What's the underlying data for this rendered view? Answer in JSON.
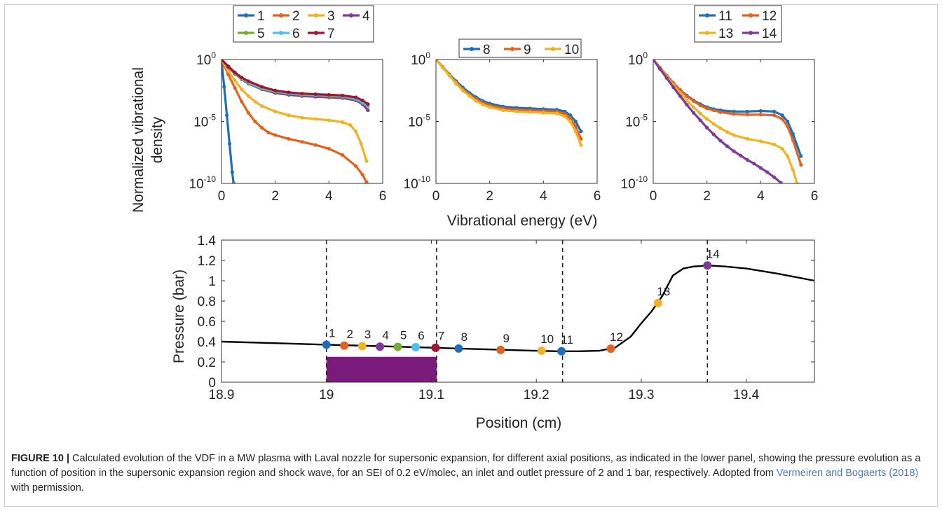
{
  "caption": {
    "label": "FIGURE 10 |",
    "text_before": " Calculated evolution of the VDF in a MW plasma with Laval nozzle for supersonic expansion, for different axial positions, as indicated in the lower panel, showing the pressure evolution as a function of position in the supersonic expansion region and shock wave, for an SEI of 0.2 eV/molec, an inlet and outlet pressure of 2 and 1 bar, respectively. Adopted from ",
    "reference": "Vermeiren and Bogaerts (2018)",
    "text_after": " with permission."
  },
  "colors": {
    "1": "#1f6fb8",
    "2": "#e0621e",
    "3": "#f0b323",
    "4": "#7d3a96",
    "5": "#77ac30",
    "6": "#4fbeee",
    "7": "#a2142f",
    "8": "#1f6fb8",
    "9": "#e0621e",
    "10": "#f0b323",
    "11": "#1f6fb8",
    "12": "#e0621e",
    "13": "#f0b323",
    "14": "#7d3a96",
    "curve": "#000000",
    "bar": "#7a1a7a"
  },
  "chart_data": [
    {
      "type": "line",
      "panel": "top-left",
      "xlabel": "",
      "ylabel": "Normalized vibrational density",
      "yscale": "log",
      "xlim": [
        0,
        6
      ],
      "ylim": [
        1e-10,
        1
      ],
      "xticks": [
        "0",
        "2",
        "4",
        "6"
      ],
      "yticks": [
        {
          "base": "10",
          "exp": "0",
          "value": 1
        },
        {
          "base": "10",
          "exp": "-5",
          "value": 1e-05
        },
        {
          "base": "10",
          "exp": "-10",
          "value": 1e-10
        }
      ],
      "legend": {
        "placement": "top",
        "entries": [
          "1",
          "2",
          "3",
          "4",
          "5",
          "6",
          "7"
        ]
      },
      "series": [
        {
          "name": "1",
          "x": [
            0,
            0.1,
            0.2,
            0.3,
            0.4,
            0.45
          ],
          "log10y": [
            0,
            -2.2,
            -4.5,
            -6.8,
            -9.1,
            -10
          ]
        },
        {
          "name": "2",
          "x": [
            0,
            0.25,
            0.5,
            0.75,
            1.0,
            1.25,
            1.5,
            1.75,
            2.0,
            2.5,
            3.0,
            3.5,
            4.0,
            4.5,
            5.0,
            5.25,
            5.4
          ],
          "log10y": [
            0,
            -1.2,
            -2.3,
            -3.4,
            -4.3,
            -5.0,
            -5.5,
            -5.9,
            -6.1,
            -6.4,
            -6.65,
            -6.9,
            -7.2,
            -7.7,
            -8.6,
            -9.3,
            -9.9
          ]
        },
        {
          "name": "3",
          "x": [
            0,
            0.25,
            0.5,
            0.75,
            1.0,
            1.25,
            1.5,
            2.0,
            2.5,
            3.0,
            3.5,
            4.0,
            4.5,
            4.8,
            5.0,
            5.2,
            5.4
          ],
          "log10y": [
            0,
            -0.9,
            -1.7,
            -2.4,
            -2.95,
            -3.4,
            -3.75,
            -4.2,
            -4.5,
            -4.7,
            -4.8,
            -4.9,
            -5.05,
            -5.3,
            -5.8,
            -6.8,
            -8.2
          ]
        },
        {
          "name": "4",
          "x": [
            0,
            0.25,
            0.5,
            0.75,
            1.0,
            1.5,
            2.0,
            2.5,
            3.0,
            3.5,
            4.0,
            4.5,
            5.0,
            5.25,
            5.45
          ],
          "log10y": [
            0,
            -0.6,
            -1.15,
            -1.6,
            -1.95,
            -2.4,
            -2.7,
            -2.85,
            -2.95,
            -3.0,
            -3.05,
            -3.1,
            -3.3,
            -3.6,
            -4.1
          ]
        },
        {
          "name": "5",
          "x": [
            0,
            0.25,
            0.5,
            0.75,
            1.0,
            1.5,
            2.0,
            2.5,
            3.0,
            3.5,
            4.0,
            4.5,
            5.0,
            5.25,
            5.45
          ],
          "log10y": [
            0,
            -0.55,
            -1.1,
            -1.55,
            -1.9,
            -2.35,
            -2.6,
            -2.75,
            -2.85,
            -2.9,
            -2.95,
            -3.0,
            -3.2,
            -3.5,
            -3.8
          ]
        },
        {
          "name": "6",
          "x": [
            0,
            0.25,
            0.5,
            0.75,
            1.0,
            1.5,
            2.0,
            2.5,
            3.0,
            3.5,
            4.0,
            4.5,
            5.0,
            5.25,
            5.45
          ],
          "log10y": [
            0,
            -0.55,
            -1.05,
            -1.5,
            -1.85,
            -2.3,
            -2.55,
            -2.7,
            -2.8,
            -2.85,
            -2.9,
            -2.95,
            -3.15,
            -3.45,
            -3.75
          ]
        },
        {
          "name": "7",
          "x": [
            0,
            0.25,
            0.5,
            0.75,
            1.0,
            1.5,
            2.0,
            2.5,
            3.0,
            3.5,
            4.0,
            4.5,
            5.0,
            5.25,
            5.45
          ],
          "log10y": [
            0,
            -0.55,
            -1.05,
            -1.45,
            -1.75,
            -2.2,
            -2.5,
            -2.65,
            -2.75,
            -2.8,
            -2.85,
            -2.9,
            -3.05,
            -3.3,
            -3.6
          ]
        }
      ]
    },
    {
      "type": "line",
      "panel": "top-middle",
      "xlabel": "",
      "ylabel": "",
      "yscale": "log",
      "xlim": [
        0,
        6
      ],
      "ylim": [
        1e-10,
        1
      ],
      "xticks": [
        "0",
        "2",
        "4",
        "6"
      ],
      "yticks": [
        {
          "base": "10",
          "exp": "0",
          "value": 1
        },
        {
          "base": "10",
          "exp": "-5",
          "value": 1e-05
        },
        {
          "base": "10",
          "exp": "-10",
          "value": 1e-10
        }
      ],
      "legend": {
        "placement": "top",
        "entries": [
          "8",
          "9",
          "10"
        ]
      },
      "series": [
        {
          "name": "8",
          "x": [
            0,
            0.25,
            0.5,
            0.75,
            1.0,
            1.25,
            1.5,
            1.75,
            2.0,
            2.5,
            3.0,
            3.5,
            4.0,
            4.5,
            4.8,
            5.0,
            5.2,
            5.4
          ],
          "log10y": [
            0,
            -0.6,
            -1.2,
            -1.75,
            -2.25,
            -2.7,
            -3.05,
            -3.35,
            -3.55,
            -3.8,
            -3.9,
            -3.95,
            -4.0,
            -4.05,
            -4.2,
            -4.5,
            -5.0,
            -5.8
          ]
        },
        {
          "name": "9",
          "x": [
            0,
            0.25,
            0.5,
            0.75,
            1.0,
            1.25,
            1.5,
            1.75,
            2.0,
            2.5,
            3.0,
            3.5,
            4.0,
            4.5,
            4.8,
            5.0,
            5.2,
            5.4
          ],
          "log10y": [
            0,
            -0.6,
            -1.25,
            -1.85,
            -2.4,
            -2.85,
            -3.2,
            -3.5,
            -3.7,
            -3.95,
            -4.05,
            -4.1,
            -4.15,
            -4.2,
            -4.4,
            -4.75,
            -5.4,
            -6.4
          ]
        },
        {
          "name": "10",
          "x": [
            0,
            0.25,
            0.5,
            0.75,
            1.0,
            1.25,
            1.5,
            1.75,
            2.0,
            2.5,
            3.0,
            3.5,
            4.0,
            4.5,
            4.8,
            5.0,
            5.2,
            5.4
          ],
          "log10y": [
            0,
            -0.65,
            -1.3,
            -1.95,
            -2.5,
            -2.95,
            -3.35,
            -3.65,
            -3.85,
            -4.1,
            -4.2,
            -4.25,
            -4.3,
            -4.35,
            -4.6,
            -5.0,
            -5.8,
            -6.9
          ]
        }
      ]
    },
    {
      "type": "line",
      "panel": "top-right",
      "xlabel": "",
      "ylabel": "",
      "yscale": "log",
      "xlim": [
        0,
        6
      ],
      "ylim": [
        1e-10,
        1
      ],
      "xticks": [
        "0",
        "2",
        "4",
        "6"
      ],
      "yticks": [
        {
          "base": "10",
          "exp": "0",
          "value": 1
        },
        {
          "base": "10",
          "exp": "-5",
          "value": 1e-05
        },
        {
          "base": "10",
          "exp": "-10",
          "value": 1e-10
        }
      ],
      "legend": {
        "placement": "top",
        "entries": [
          "11",
          "12",
          "13",
          "14"
        ]
      },
      "series": [
        {
          "name": "11",
          "x": [
            0,
            0.25,
            0.5,
            0.75,
            1.0,
            1.25,
            1.5,
            1.75,
            2.0,
            2.25,
            2.5,
            3.0,
            3.5,
            4.0,
            4.5,
            4.8,
            5.0,
            5.2,
            5.5
          ],
          "log10y": [
            0,
            -0.65,
            -1.3,
            -1.9,
            -2.45,
            -2.9,
            -3.3,
            -3.6,
            -3.85,
            -4.0,
            -4.1,
            -4.2,
            -4.2,
            -4.15,
            -4.2,
            -4.5,
            -5.0,
            -6.0,
            -7.8
          ]
        },
        {
          "name": "12",
          "x": [
            0,
            0.25,
            0.5,
            0.75,
            1.0,
            1.25,
            1.5,
            1.75,
            2.0,
            2.25,
            2.5,
            3.0,
            3.5,
            4.0,
            4.5,
            4.8,
            5.0,
            5.2,
            5.5
          ],
          "log10y": [
            0,
            -0.65,
            -1.3,
            -1.9,
            -2.45,
            -2.95,
            -3.35,
            -3.7,
            -3.95,
            -4.1,
            -4.25,
            -4.4,
            -4.45,
            -4.45,
            -4.5,
            -4.8,
            -5.4,
            -6.5,
            -8.5
          ]
        },
        {
          "name": "13",
          "x": [
            0,
            0.25,
            0.5,
            0.75,
            1.0,
            1.25,
            1.5,
            1.75,
            2.0,
            2.25,
            2.5,
            2.75,
            3.0,
            3.5,
            4.0,
            4.5,
            4.8,
            5.0,
            5.2,
            5.35
          ],
          "log10y": [
            0,
            -0.7,
            -1.4,
            -2.05,
            -2.7,
            -3.3,
            -3.85,
            -4.35,
            -4.8,
            -5.2,
            -5.55,
            -5.85,
            -6.1,
            -6.4,
            -6.6,
            -6.85,
            -7.2,
            -7.8,
            -8.9,
            -10
          ]
        },
        {
          "name": "14",
          "x": [
            0,
            0.25,
            0.5,
            0.75,
            1.0,
            1.25,
            1.5,
            1.75,
            2.0,
            2.25,
            2.5,
            2.75,
            3.0,
            3.25,
            3.5,
            3.75,
            4.0,
            4.25,
            4.5,
            4.75
          ],
          "log10y": [
            0,
            -0.75,
            -1.5,
            -2.25,
            -2.95,
            -3.65,
            -4.3,
            -4.9,
            -5.5,
            -6.05,
            -6.55,
            -7.0,
            -7.4,
            -7.75,
            -8.1,
            -8.4,
            -8.75,
            -9.1,
            -9.5,
            -9.95
          ]
        }
      ]
    },
    {
      "type": "line",
      "panel": "bottom",
      "xlabel": "Position (cm)",
      "ylabel": "Pressure (bar)",
      "shared_xlabel_top": "Vibrational energy (eV)",
      "xlim": [
        18.9,
        19.465
      ],
      "ylim": [
        0,
        1.4
      ],
      "xticks": [
        "18.9",
        "19",
        "19.1",
        "19.2",
        "19.3",
        "19.4"
      ],
      "xtick_values": [
        18.9,
        19.0,
        19.1,
        19.2,
        19.3,
        19.4
      ],
      "yticks": [
        "0",
        "0.2",
        "0.4",
        "0.6",
        "0.8",
        "1",
        "1.2",
        "1.4"
      ],
      "ytick_values": [
        0,
        0.2,
        0.4,
        0.6,
        0.8,
        1.0,
        1.2,
        1.4
      ],
      "curve": {
        "x": [
          18.9,
          18.95,
          19.0,
          19.05,
          19.1,
          19.15,
          19.2,
          19.22,
          19.24,
          19.26,
          19.275,
          19.29,
          19.3,
          19.31,
          19.32,
          19.33,
          19.34,
          19.35,
          19.365,
          19.38,
          19.4,
          19.43,
          19.465
        ],
        "y": [
          0.4,
          0.385,
          0.37,
          0.355,
          0.34,
          0.325,
          0.31,
          0.305,
          0.305,
          0.31,
          0.34,
          0.45,
          0.58,
          0.7,
          0.85,
          1.05,
          1.12,
          1.14,
          1.15,
          1.14,
          1.12,
          1.07,
          1.0
        ]
      },
      "dashed_lines_x": [
        19.0,
        19.105,
        19.225,
        19.363
      ],
      "bar": {
        "x_start": 19.0,
        "x_end": 19.105,
        "y_top": 0.25
      },
      "points": [
        {
          "label": "1",
          "x": 19.0,
          "y": 0.37
        },
        {
          "label": "2",
          "x": 19.017,
          "y": 0.36
        },
        {
          "label": "3",
          "x": 19.034,
          "y": 0.355
        },
        {
          "label": "4",
          "x": 19.051,
          "y": 0.35
        },
        {
          "label": "5",
          "x": 19.068,
          "y": 0.348
        },
        {
          "label": "6",
          "x": 19.085,
          "y": 0.345
        },
        {
          "label": "7",
          "x": 19.104,
          "y": 0.34
        },
        {
          "label": "8",
          "x": 19.126,
          "y": 0.332
        },
        {
          "label": "9",
          "x": 19.166,
          "y": 0.318
        },
        {
          "label": "10",
          "x": 19.205,
          "y": 0.31
        },
        {
          "label": "11",
          "x": 19.224,
          "y": 0.305
        },
        {
          "label": "12",
          "x": 19.271,
          "y": 0.33
        },
        {
          "label": "13",
          "x": 19.316,
          "y": 0.78
        },
        {
          "label": "14",
          "x": 19.363,
          "y": 1.15
        }
      ]
    }
  ]
}
